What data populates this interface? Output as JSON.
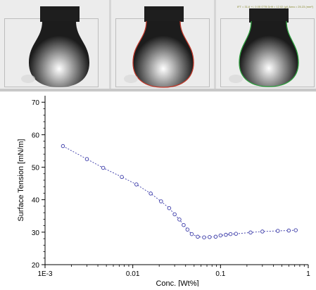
{
  "drop_panels": [
    {
      "outline": "none",
      "outline_color": "",
      "annotation": ""
    },
    {
      "outline": "fit",
      "outline_color": "#c0392b",
      "annotation": ""
    },
    {
      "outline": "fit",
      "outline_color": "#2e9e3e",
      "annotation": "IFT = 31.6 +/- 0.05 OTB Drift = 12.02 (μl) Area = 25.23 (mm²)"
    }
  ],
  "chart_data": {
    "type": "scatter",
    "connected": true,
    "line_style": "dotted",
    "marker": "open-circle",
    "color": "#3a3aa8",
    "xlabel": "Conc. [Wt%]",
    "ylabel": "Surface Tension [mN/m]",
    "xscale": "log",
    "xlim": [
      0.001,
      1.0
    ],
    "ylim": [
      20,
      72
    ],
    "xticks": [
      0.001,
      0.01,
      0.1,
      1.0
    ],
    "xtick_labels": [
      "1E-3",
      "0.01",
      "0.1",
      "1"
    ],
    "yticks": [
      20,
      30,
      40,
      50,
      60,
      70
    ],
    "ytick_labels": [
      "20",
      "30",
      "40",
      "50",
      "60",
      "70"
    ],
    "x": [
      0.0016,
      0.003,
      0.0046,
      0.0075,
      0.011,
      0.016,
      0.021,
      0.026,
      0.03,
      0.034,
      0.038,
      0.042,
      0.047,
      0.055,
      0.065,
      0.075,
      0.088,
      0.1,
      0.115,
      0.13,
      0.15,
      0.22,
      0.3,
      0.45,
      0.6,
      0.72
    ],
    "y": [
      56.5,
      52.5,
      49.8,
      47.0,
      44.7,
      41.9,
      39.5,
      37.4,
      35.5,
      33.9,
      32.2,
      30.8,
      29.4,
      28.6,
      28.4,
      28.5,
      28.6,
      29.0,
      29.2,
      29.4,
      29.5,
      29.9,
      30.2,
      30.4,
      30.5,
      30.6
    ]
  }
}
